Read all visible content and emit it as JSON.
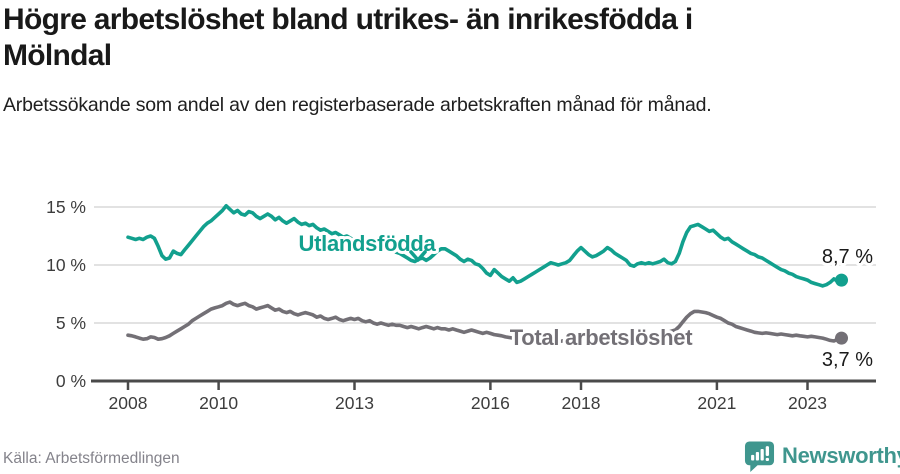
{
  "footer": {
    "source": "Källa: Arbetsförmedlingen",
    "brand": "Newsworthy"
  },
  "chart_data": {
    "type": "line",
    "title": "Högre arbetslöshet bland utrikes- än inrikesfödda i Mölndal",
    "subtitle": "Arbetssökande som andel av den registerbaserade arbetskraften månad för månad.",
    "unit": "%",
    "frequency": "monthly",
    "grid": "horizontal-only",
    "legend_position": "inline-labels-on-lines",
    "colors": {
      "grid": "#d9d9d9",
      "axis": "#4a4a4a",
      "value_label": "#1a1a1a"
    },
    "x_axis": {
      "ticks": [
        {
          "label": "2008",
          "year": 2008
        },
        {
          "label": "2010",
          "year": 2010
        },
        {
          "label": "2013",
          "year": 2013
        },
        {
          "label": "2016",
          "year": 2016
        },
        {
          "label": "2018",
          "year": 2018
        },
        {
          "label": "2021",
          "year": 2021
        },
        {
          "label": "2023",
          "year": 2023
        }
      ],
      "range_years": [
        2007.25,
        2024.5
      ]
    },
    "y_axis": {
      "ticks": [
        {
          "label": "15 %",
          "value": 15
        },
        {
          "label": "10 %",
          "value": 10
        },
        {
          "label": "5 %",
          "value": 5
        },
        {
          "label": "0 %",
          "value": 0
        }
      ],
      "range": [
        0,
        15.5
      ]
    },
    "series": [
      {
        "id": "utlandsfodda",
        "name": "Utlandsfödda",
        "color": "#12a08e",
        "start_year": 2008,
        "start_month": 1,
        "end_label": "8,7 %",
        "last_value": 8.7,
        "values": [
          12.4,
          12.3,
          12.2,
          12.3,
          12.2,
          12.4,
          12.5,
          12.3,
          11.6,
          10.8,
          10.5,
          10.6,
          11.2,
          11.0,
          10.9,
          11.3,
          11.7,
          12.1,
          12.5,
          12.9,
          13.3,
          13.6,
          13.8,
          14.1,
          14.4,
          14.7,
          15.1,
          14.8,
          14.5,
          14.7,
          14.4,
          14.3,
          14.6,
          14.5,
          14.2,
          14.0,
          14.2,
          14.4,
          14.2,
          13.9,
          14.1,
          13.8,
          13.6,
          13.8,
          14.0,
          13.7,
          13.5,
          13.6,
          13.4,
          13.5,
          13.2,
          13.0,
          13.1,
          12.9,
          12.7,
          12.8,
          12.6,
          12.4,
          12.5,
          12.3,
          12.1,
          12.2,
          12.0,
          11.8,
          11.9,
          11.7,
          11.5,
          11.6,
          11.4,
          11.2,
          11.3,
          11.1,
          11.0,
          10.8,
          10.6,
          10.4,
          10.3,
          10.5,
          10.6,
          10.4,
          10.6,
          10.9,
          11.2,
          11.4,
          11.4,
          11.2,
          11.0,
          10.8,
          10.5,
          10.3,
          10.5,
          10.4,
          10.1,
          10.0,
          9.7,
          9.3,
          9.1,
          9.6,
          9.3,
          9.0,
          8.8,
          8.6,
          8.9,
          8.5,
          8.6,
          8.8,
          9.0,
          9.2,
          9.4,
          9.6,
          9.8,
          10.0,
          10.2,
          10.1,
          10.0,
          10.1,
          10.2,
          10.4,
          10.8,
          11.2,
          11.5,
          11.2,
          10.9,
          10.7,
          10.8,
          11.0,
          11.2,
          11.5,
          11.3,
          11.0,
          10.8,
          10.6,
          10.4,
          10.0,
          9.9,
          10.1,
          10.2,
          10.1,
          10.2,
          10.1,
          10.2,
          10.3,
          10.5,
          10.2,
          10.1,
          10.3,
          11.0,
          12.0,
          12.8,
          13.3,
          13.4,
          13.5,
          13.3,
          13.1,
          12.9,
          13.0,
          12.7,
          12.4,
          12.2,
          12.3,
          12.0,
          11.8,
          11.6,
          11.4,
          11.2,
          11.0,
          10.9,
          10.7,
          10.6,
          10.4,
          10.2,
          10.0,
          9.8,
          9.6,
          9.5,
          9.3,
          9.2,
          9.0,
          8.9,
          8.8,
          8.7,
          8.5,
          8.4,
          8.3,
          8.2,
          8.3,
          8.5,
          8.8,
          8.6,
          8.7
        ]
      },
      {
        "id": "total",
        "name": "Total arbetslöshet",
        "color": "#737076",
        "start_year": 2008,
        "start_month": 1,
        "end_label": "3,7 %",
        "last_value": 3.7,
        "values": [
          3.95,
          3.9,
          3.8,
          3.7,
          3.6,
          3.65,
          3.8,
          3.75,
          3.6,
          3.65,
          3.75,
          3.9,
          4.1,
          4.3,
          4.5,
          4.7,
          4.9,
          5.2,
          5.4,
          5.6,
          5.8,
          6.0,
          6.2,
          6.3,
          6.4,
          6.5,
          6.7,
          6.8,
          6.6,
          6.5,
          6.6,
          6.7,
          6.5,
          6.4,
          6.2,
          6.3,
          6.4,
          6.5,
          6.3,
          6.1,
          6.2,
          6.0,
          5.9,
          6.0,
          5.8,
          5.7,
          5.8,
          5.9,
          5.8,
          5.7,
          5.5,
          5.6,
          5.4,
          5.3,
          5.4,
          5.5,
          5.3,
          5.2,
          5.3,
          5.4,
          5.3,
          5.4,
          5.2,
          5.1,
          5.2,
          5.0,
          4.9,
          5.0,
          4.9,
          4.8,
          4.9,
          4.8,
          4.8,
          4.7,
          4.6,
          4.7,
          4.6,
          4.5,
          4.6,
          4.7,
          4.6,
          4.5,
          4.6,
          4.5,
          4.5,
          4.4,
          4.5,
          4.4,
          4.3,
          4.2,
          4.3,
          4.4,
          4.3,
          4.2,
          4.1,
          4.2,
          4.1,
          4.0,
          3.95,
          3.9,
          3.8,
          3.75,
          3.7,
          3.65,
          3.6,
          3.6,
          3.55,
          3.5,
          3.5,
          3.45,
          3.4,
          3.45,
          3.5,
          3.45,
          3.4,
          3.45,
          3.5,
          3.45,
          3.5,
          3.55,
          3.5,
          3.45,
          3.4,
          3.35,
          3.4,
          3.45,
          3.5,
          3.55,
          3.5,
          3.45,
          3.5,
          3.55,
          3.6,
          3.65,
          3.7,
          3.75,
          3.8,
          3.85,
          3.9,
          3.95,
          4.0,
          4.05,
          4.1,
          4.2,
          4.3,
          4.4,
          4.7,
          5.1,
          5.5,
          5.8,
          6.0,
          6.0,
          5.95,
          5.9,
          5.8,
          5.65,
          5.5,
          5.4,
          5.2,
          5.0,
          4.9,
          4.7,
          4.6,
          4.5,
          4.4,
          4.3,
          4.2,
          4.15,
          4.1,
          4.15,
          4.1,
          4.05,
          4.0,
          4.05,
          4.0,
          3.95,
          3.9,
          3.95,
          3.9,
          3.85,
          3.8,
          3.85,
          3.8,
          3.75,
          3.7,
          3.6,
          3.5,
          3.45,
          3.6,
          3.7
        ]
      }
    ],
    "annotations": {
      "utlandsfodda_label_arrow": "chevron-down-to-line",
      "end_value_labels": [
        "8,7 %",
        "3,7 %"
      ]
    }
  }
}
